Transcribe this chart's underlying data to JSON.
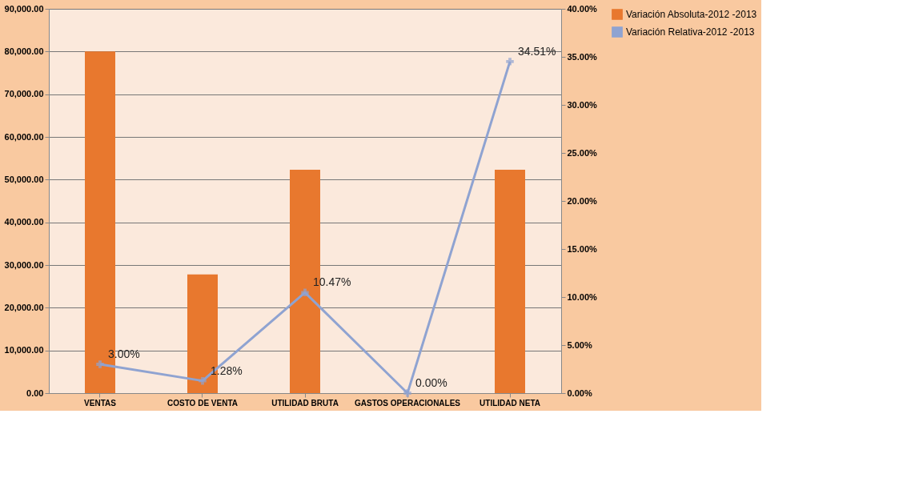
{
  "chart_data": {
    "type": "bar",
    "categories": [
      "VENTAS",
      "COSTO DE VENTA",
      "UTILIDAD BRUTA",
      "GASTOS OPERACIONALES",
      "UTILIDAD NETA"
    ],
    "series": [
      {
        "name": "Variación Absoluta-2012 -2013",
        "color": "#e8782e",
        "values": [
          80000,
          27800,
          52300,
          0,
          52300
        ]
      },
      {
        "name": "Variación Relativa-2012 -2013",
        "type": "line",
        "axis": "y2",
        "color": "#8fa3d1",
        "values": [
          3.0,
          1.28,
          10.47,
          0.0,
          34.51
        ],
        "value_labels": [
          "3.00%",
          "1.28%",
          "10.47%",
          "0.00%",
          "34.51%"
        ]
      }
    ],
    "ylim": [
      0,
      90000
    ],
    "yticks": [
      {
        "value": 0,
        "label": "0.00"
      },
      {
        "value": 10000,
        "label": "10,000.00"
      },
      {
        "value": 20000,
        "label": "20,000.00"
      },
      {
        "value": 30000,
        "label": "30,000.00"
      },
      {
        "value": 40000,
        "label": "40,000.00"
      },
      {
        "value": 50000,
        "label": "50,000.00"
      },
      {
        "value": 60000,
        "label": "60,000.00"
      },
      {
        "value": 70000,
        "label": "70,000.00"
      },
      {
        "value": 80000,
        "label": "80,000.00"
      },
      {
        "value": 90000,
        "label": "90,000.00"
      }
    ],
    "y2lim": [
      0,
      40
    ],
    "y2ticks": [
      {
        "value": 0,
        "label": "0.00%"
      },
      {
        "value": 5,
        "label": "5.00%"
      },
      {
        "value": 10,
        "label": "10.00%"
      },
      {
        "value": 15,
        "label": "15.00%"
      },
      {
        "value": 20,
        "label": "20.00%"
      },
      {
        "value": 25,
        "label": "25.00%"
      },
      {
        "value": 30,
        "label": "30.00%"
      },
      {
        "value": 35,
        "label": "35.00%"
      },
      {
        "value": 40,
        "label": "40.00%"
      }
    ],
    "grid": "y",
    "legend": "right",
    "marker": "cross",
    "line_style": "solid"
  }
}
